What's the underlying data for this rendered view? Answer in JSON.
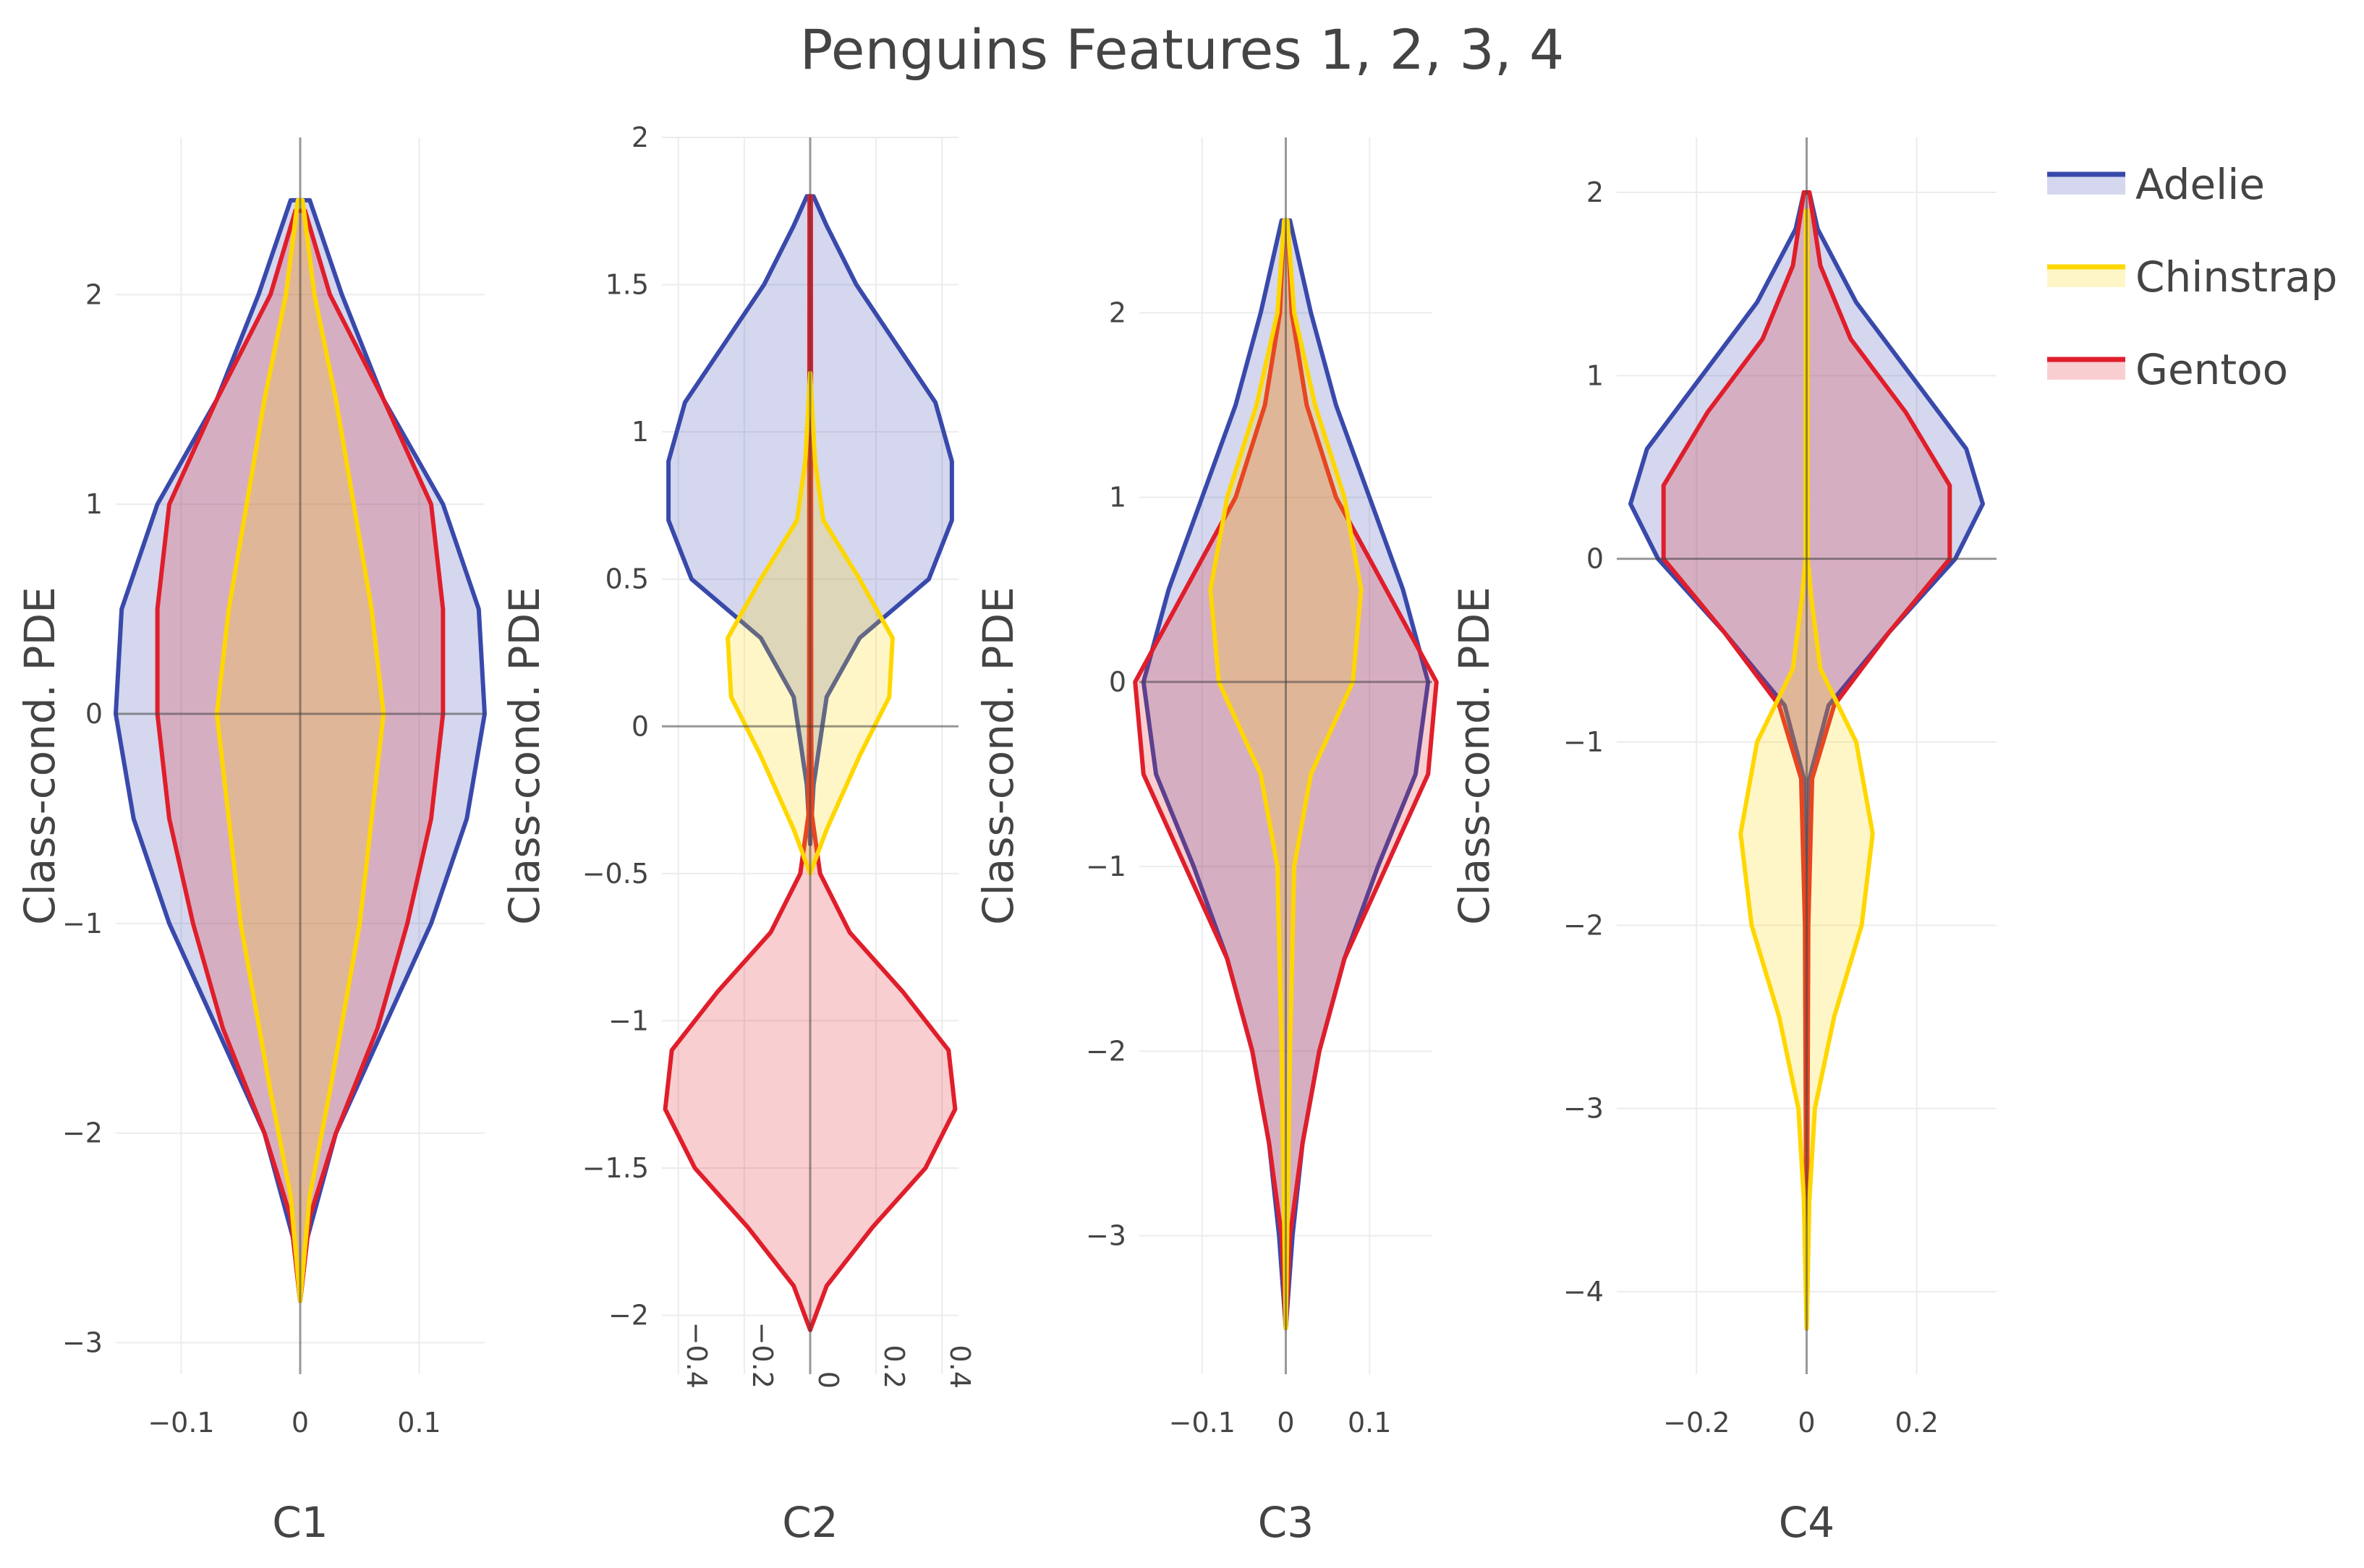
{
  "chart_data": {
    "type": "violin",
    "title": "Penguins Features 1, 2, 3, 4",
    "legend": {
      "placement": "top-right",
      "items": [
        {
          "name": "Adelie",
          "color": "#3949ab"
        },
        {
          "name": "Chinstrap",
          "color": "#ffd700"
        },
        {
          "name": "Gentoo",
          "color": "#e01e2b"
        }
      ]
    },
    "panels": [
      {
        "xlabel": "C1",
        "ylabel": "Class-cond. PDE",
        "xlim": [
          -0.155,
          0.155
        ],
        "ylim": [
          -3.15,
          2.75
        ],
        "xticks": [
          -0.1,
          0,
          0.1
        ],
        "xtick_labels": [
          "−0.1",
          "0",
          "0.1"
        ],
        "yticks": [
          -3,
          -2,
          -1,
          0,
          1,
          2
        ],
        "ytick_labels": [
          "−3",
          "−2",
          "−1",
          "0",
          "1",
          "2"
        ],
        "series": [
          {
            "name": "Adelie",
            "profile": [
              [
                -2.8,
                0
              ],
              [
                -2.5,
                0.006
              ],
              [
                -2.0,
                0.03
              ],
              [
                -1.5,
                0.07
              ],
              [
                -1.0,
                0.11
              ],
              [
                -0.5,
                0.14
              ],
              [
                0.0,
                0.155
              ],
              [
                0.5,
                0.15
              ],
              [
                1.0,
                0.12
              ],
              [
                1.5,
                0.07
              ],
              [
                2.0,
                0.035
              ],
              [
                2.45,
                0.008
              ],
              [
                2.45,
                0
              ]
            ]
          },
          {
            "name": "Chinstrap",
            "profile": [
              [
                -2.8,
                0
              ],
              [
                -2.3,
                0.008
              ],
              [
                -1.8,
                0.025
              ],
              [
                -1.0,
                0.05
              ],
              [
                0.0,
                0.07
              ],
              [
                0.5,
                0.06
              ],
              [
                1.0,
                0.045
              ],
              [
                1.5,
                0.03
              ],
              [
                2.0,
                0.012
              ],
              [
                2.45,
                0.002
              ],
              [
                2.45,
                0
              ]
            ]
          },
          {
            "name": "Gentoo",
            "profile": [
              [
                -2.8,
                0
              ],
              [
                -2.4,
                0.008
              ],
              [
                -2.0,
                0.03
              ],
              [
                -1.5,
                0.065
              ],
              [
                -1.0,
                0.09
              ],
              [
                -0.5,
                0.11
              ],
              [
                0.0,
                0.12
              ],
              [
                0.5,
                0.12
              ],
              [
                1.0,
                0.11
              ],
              [
                1.5,
                0.07
              ],
              [
                2.0,
                0.025
              ],
              [
                2.4,
                0.004
              ],
              [
                2.4,
                0
              ]
            ]
          }
        ]
      },
      {
        "xlabel": "C2",
        "ylabel": "Class-cond. PDE",
        "xlim": [
          -0.45,
          0.45
        ],
        "ylim": [
          -2.2,
          2.0
        ],
        "xticks": [
          -0.4,
          -0.2,
          0,
          0.2,
          0.4
        ],
        "xtick_labels": [
          "−0.4",
          "−0.2",
          "0",
          "0.2",
          "0.4"
        ],
        "yticks": [
          -2,
          -1.5,
          -1,
          -0.5,
          0,
          0.5,
          1,
          1.5,
          2
        ],
        "ytick_labels": [
          "−2",
          "−1.5",
          "−1",
          "−0.5",
          "0",
          "0.5",
          "1",
          "1.5",
          "2"
        ],
        "series": [
          {
            "name": "Adelie",
            "profile": [
              [
                -0.4,
                0
              ],
              [
                -0.2,
                0.01
              ],
              [
                0.1,
                0.05
              ],
              [
                0.3,
                0.15
              ],
              [
                0.5,
                0.36
              ],
              [
                0.7,
                0.43
              ],
              [
                0.9,
                0.43
              ],
              [
                1.1,
                0.38
              ],
              [
                1.3,
                0.26
              ],
              [
                1.5,
                0.14
              ],
              [
                1.7,
                0.05
              ],
              [
                1.8,
                0.01
              ],
              [
                1.8,
                0
              ]
            ]
          },
          {
            "name": "Chinstrap",
            "profile": [
              [
                -0.5,
                0
              ],
              [
                -0.35,
                0.05
              ],
              [
                -0.1,
                0.15
              ],
              [
                0.1,
                0.24
              ],
              [
                0.3,
                0.25
              ],
              [
                0.5,
                0.15
              ],
              [
                0.7,
                0.04
              ],
              [
                0.9,
                0.015
              ],
              [
                1.2,
                0.0
              ],
              [
                1.2,
                0
              ]
            ]
          },
          {
            "name": "Gentoo",
            "profile": [
              [
                -2.05,
                0
              ],
              [
                -1.9,
                0.05
              ],
              [
                -1.7,
                0.19
              ],
              [
                -1.5,
                0.35
              ],
              [
                -1.3,
                0.44
              ],
              [
                -1.1,
                0.42
              ],
              [
                -0.9,
                0.28
              ],
              [
                -0.7,
                0.12
              ],
              [
                -0.5,
                0.03
              ],
              [
                -0.3,
                0.005
              ],
              [
                0.0,
                0.003
              ],
              [
                1.8,
                0.002
              ],
              [
                1.8,
                0
              ]
            ]
          }
        ]
      },
      {
        "xlabel": "C3",
        "ylabel": "Class-cond. PDE",
        "xlim": [
          -0.175,
          0.175
        ],
        "ylim": [
          -3.75,
          2.95
        ],
        "xticks": [
          -0.1,
          0,
          0.1
        ],
        "xtick_labels": [
          "−0.1",
          "0",
          "0.1"
        ],
        "yticks": [
          -3,
          -2,
          -1,
          0,
          1,
          2
        ],
        "ytick_labels": [
          "−3",
          "−2",
          "−1",
          "0",
          "1",
          "2"
        ],
        "series": [
          {
            "name": "Adelie",
            "profile": [
              [
                -3.5,
                0
              ],
              [
                -3.0,
                0.008
              ],
              [
                -2.5,
                0.02
              ],
              [
                -2.0,
                0.04
              ],
              [
                -1.5,
                0.07
              ],
              [
                -1.0,
                0.11
              ],
              [
                -0.5,
                0.155
              ],
              [
                0.0,
                0.17
              ],
              [
                0.5,
                0.14
              ],
              [
                1.0,
                0.1
              ],
              [
                1.5,
                0.06
              ],
              [
                2.0,
                0.03
              ],
              [
                2.5,
                0.005
              ],
              [
                2.5,
                0
              ]
            ]
          },
          {
            "name": "Chinstrap",
            "profile": [
              [
                -3.5,
                0
              ],
              [
                -2.0,
                0.005
              ],
              [
                -1.0,
                0.01
              ],
              [
                -0.5,
                0.03
              ],
              [
                0.0,
                0.08
              ],
              [
                0.5,
                0.09
              ],
              [
                1.0,
                0.07
              ],
              [
                1.5,
                0.035
              ],
              [
                2.0,
                0.01
              ],
              [
                2.5,
                0.002
              ],
              [
                2.5,
                0
              ]
            ]
          },
          {
            "name": "Gentoo",
            "profile": [
              [
                -3.5,
                0
              ],
              [
                -3.0,
                0.005
              ],
              [
                -2.5,
                0.02
              ],
              [
                -2.0,
                0.04
              ],
              [
                -1.5,
                0.07
              ],
              [
                -1.0,
                0.12
              ],
              [
                -0.5,
                0.17
              ],
              [
                0.0,
                0.18
              ],
              [
                0.5,
                0.12
              ],
              [
                1.0,
                0.06
              ],
              [
                1.5,
                0.025
              ],
              [
                2.0,
                0.007
              ],
              [
                2.5,
                0.002
              ],
              [
                2.5,
                0
              ]
            ]
          }
        ]
      },
      {
        "xlabel": "C4",
        "ylabel": "Class-cond. PDE",
        "xlim": [
          -0.345,
          0.345
        ],
        "ylim": [
          -4.45,
          2.3
        ],
        "xticks": [
          -0.2,
          0,
          0.2
        ],
        "xtick_labels": [
          "−0.2",
          "0",
          "0.2"
        ],
        "yticks": [
          -4,
          -3,
          -2,
          -1,
          0,
          1,
          2
        ],
        "ytick_labels": [
          "−4",
          "−3",
          "−2",
          "−1",
          "0",
          "1",
          "2"
        ],
        "series": [
          {
            "name": "Adelie",
            "profile": [
              [
                -4.2,
                0
              ],
              [
                -2.0,
                0.002
              ],
              [
                -1.2,
                0.005
              ],
              [
                -0.8,
                0.04
              ],
              [
                -0.4,
                0.15
              ],
              [
                0.0,
                0.27
              ],
              [
                0.3,
                0.32
              ],
              [
                0.6,
                0.29
              ],
              [
                1.0,
                0.19
              ],
              [
                1.4,
                0.09
              ],
              [
                1.8,
                0.02
              ],
              [
                2.0,
                0.005
              ],
              [
                2.0,
                0
              ]
            ]
          },
          {
            "name": "Chinstrap",
            "profile": [
              [
                -4.2,
                0
              ],
              [
                -3.5,
                0.005
              ],
              [
                -3.0,
                0.015
              ],
              [
                -2.5,
                0.05
              ],
              [
                -2.0,
                0.1
              ],
              [
                -1.5,
                0.12
              ],
              [
                -1.0,
                0.09
              ],
              [
                -0.6,
                0.025
              ],
              [
                -0.2,
                0.008
              ],
              [
                0.0,
                0.002
              ],
              [
                1.9,
                0.001
              ],
              [
                1.9,
                0
              ]
            ]
          },
          {
            "name": "Gentoo",
            "profile": [
              [
                -4.2,
                0
              ],
              [
                -2.0,
                0.003
              ],
              [
                -1.2,
                0.01
              ],
              [
                -0.8,
                0.05
              ],
              [
                -0.4,
                0.15
              ],
              [
                0.0,
                0.26
              ],
              [
                0.4,
                0.26
              ],
              [
                0.8,
                0.18
              ],
              [
                1.2,
                0.08
              ],
              [
                1.6,
                0.025
              ],
              [
                2.0,
                0.005
              ],
              [
                2.0,
                0
              ]
            ]
          }
        ]
      }
    ]
  }
}
